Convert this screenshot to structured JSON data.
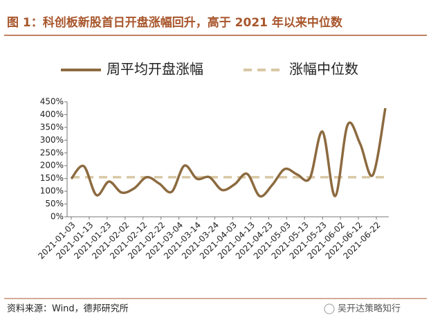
{
  "chart_data": {
    "type": "line",
    "title": "图 1：科创板新股首日开盘涨幅回升，高于 2021 年以来中位数",
    "x": [
      "2021-01-03",
      "2021-01-10",
      "2021-01-17",
      "2021-01-24",
      "2021-01-31",
      "2021-02-07",
      "2021-02-14",
      "2021-02-21",
      "2021-02-28",
      "2021-03-07",
      "2021-03-14",
      "2021-03-21",
      "2021-03-28",
      "2021-04-04",
      "2021-04-11",
      "2021-04-18",
      "2021-04-25",
      "2021-05-02",
      "2021-05-09",
      "2021-05-16",
      "2021-05-23",
      "2021-05-30",
      "2021-06-06",
      "2021-06-13",
      "2021-06-20",
      "2021-06-27"
    ],
    "series": [
      {
        "name": "周平均开盘涨幅",
        "color": "#8c6a3f",
        "values": [
          149,
          198,
          85,
          138,
          95,
          111,
          155,
          130,
          98,
          200,
          149,
          155,
          105,
          127,
          168,
          81,
          125,
          187,
          165,
          152,
          333,
          81,
          360,
          285,
          163,
          425
        ]
      },
      {
        "name": "涨幅中位数",
        "color": "#d8c8a4",
        "dashed": true,
        "values": [
          155,
          155,
          155,
          155,
          155,
          155,
          155,
          155,
          155,
          155,
          155,
          155,
          155,
          155,
          155,
          155,
          155,
          155,
          155,
          155,
          155,
          155,
          155,
          155,
          155,
          155
        ]
      }
    ],
    "xlim": [
      "2021-01-03",
      "2021-06-27"
    ],
    "xticks": [
      "2021-01-03",
      "2021-01-13",
      "2021-01-23",
      "2021-02-02",
      "2021-02-12",
      "2021-02-22",
      "2021-03-04",
      "2021-03-14",
      "2021-03-24",
      "2021-04-03",
      "2021-04-13",
      "2021-04-23",
      "2021-05-03",
      "2021-05-13",
      "2021-05-23",
      "2021-06-02",
      "2021-06-12",
      "2021-06-22"
    ],
    "ylim": [
      0,
      450
    ],
    "yticks": [
      {
        "value": 0,
        "label": "0%"
      },
      {
        "value": 50,
        "label": "50%"
      },
      {
        "value": 100,
        "label": "100%"
      },
      {
        "value": 150,
        "label": "150%"
      },
      {
        "value": 200,
        "label": "200%"
      },
      {
        "value": 250,
        "label": "250%"
      },
      {
        "value": 300,
        "label": "300%"
      },
      {
        "value": 350,
        "label": "350%"
      },
      {
        "value": 400,
        "label": "400%"
      },
      {
        "value": 450,
        "label": "450%"
      }
    ],
    "legend": "top",
    "source": "资料来源：Wind，德邦研究所",
    "watermark": "吴开达策略知行"
  }
}
